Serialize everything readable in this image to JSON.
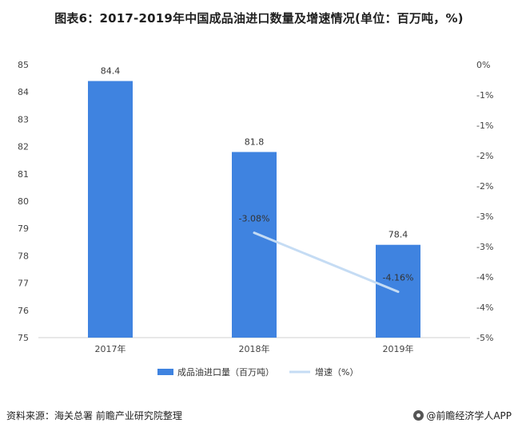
{
  "title": "图表6：2017-2019年中国成品油进口数量及增速情况(单位：百万吨，%)",
  "source": "资料来源：海关总署  前瞻产业研究院整理",
  "brand": "@前瞻经济学人APP",
  "colors": {
    "bar": "#3f83e0",
    "line": "#c5dcf4",
    "axis": "#d0d0d0",
    "text": "#444444"
  },
  "chart_data": {
    "type": "bar",
    "categories": [
      "2017年",
      "2018年",
      "2019年"
    ],
    "series": [
      {
        "name": "成品油进口量（百万吨）",
        "type": "bar",
        "axis": "left",
        "values": [
          84.4,
          81.8,
          78.4
        ],
        "labels": [
          "84.4",
          "81.8",
          "78.4"
        ]
      },
      {
        "name": "增速（%）",
        "type": "line",
        "axis": "right",
        "values": [
          null,
          -3.08,
          -4.16
        ],
        "labels": [
          "",
          "-3.08%",
          "-4.16%"
        ]
      }
    ],
    "y_left": {
      "min": 75,
      "max": 85,
      "ticks": [
        "75",
        "76",
        "77",
        "78",
        "79",
        "80",
        "81",
        "82",
        "83",
        "84",
        "85"
      ]
    },
    "y_right": {
      "min": -5,
      "max": 0,
      "ticks": [
        "0%",
        "-1%",
        "-1%",
        "-2%",
        "-2%",
        "-3%",
        "-3%",
        "-4%",
        "-4%",
        "-5%"
      ]
    },
    "legend_position": "bottom"
  }
}
